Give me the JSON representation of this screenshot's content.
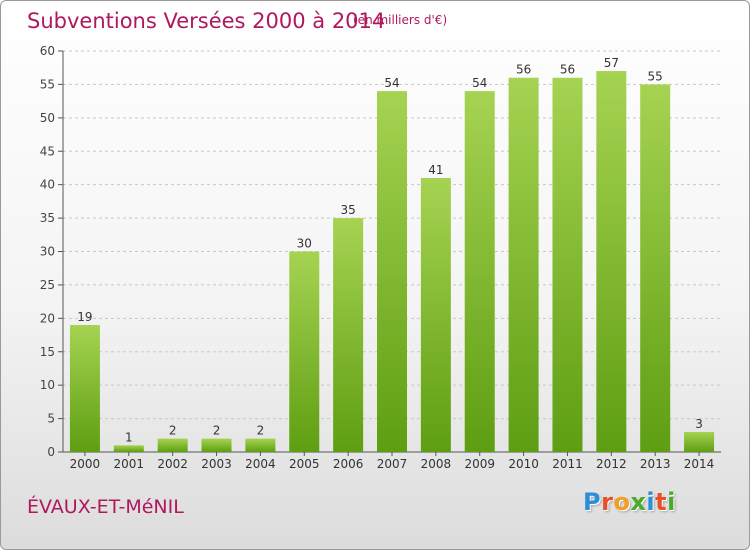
{
  "header": {
    "title": "Subventions Versées 2000 à 2014",
    "subtitle": "(en milliers d'€)"
  },
  "footer": {
    "commune": "ÉVAUX-ET-MéNIL",
    "logo": "Proxiti"
  },
  "colors": {
    "title": "#b0185e",
    "bar_light": "#a6d352",
    "bar_dark": "#5e9e12",
    "logo_letters": [
      "#2a8fd6",
      "#e8502a",
      "#f0a020",
      "#4aaa2a",
      "#2a8fd6",
      "#e8502a",
      "#4aaa2a"
    ]
  },
  "chart_data": {
    "type": "bar",
    "title": "Subventions Versées 2000 à 2014",
    "subtitle": "(en milliers d'€)",
    "categories": [
      "2000",
      "2001",
      "2002",
      "2003",
      "2004",
      "2005",
      "2006",
      "2007",
      "2008",
      "2009",
      "2010",
      "2011",
      "2012",
      "2013",
      "2014"
    ],
    "values": [
      19,
      1,
      2,
      2,
      2,
      30,
      35,
      54,
      41,
      54,
      56,
      56,
      57,
      55,
      3
    ],
    "ylim": [
      0,
      60
    ],
    "yticks": [
      0,
      5,
      10,
      15,
      20,
      25,
      30,
      35,
      40,
      45,
      50,
      55,
      60
    ],
    "grid": "horizontal dashed",
    "xlabel": "",
    "ylabel": ""
  }
}
